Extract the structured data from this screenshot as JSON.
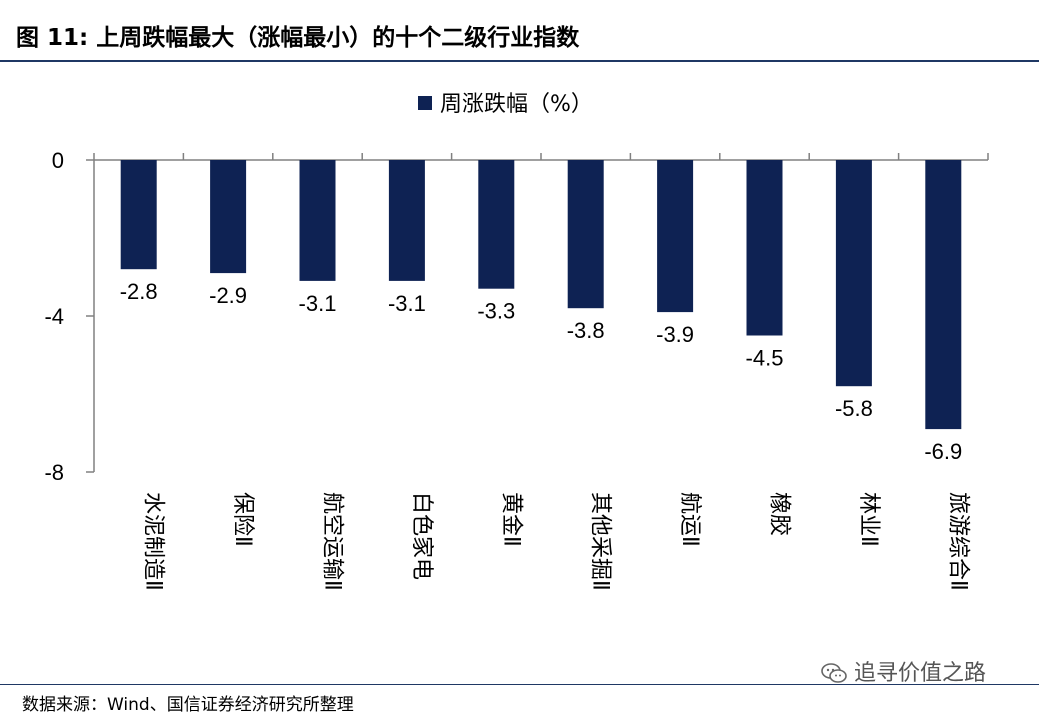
{
  "header": {
    "title": "图  11:  上周跌幅最大（涨幅最小）的十个二级行业指数"
  },
  "footer": {
    "source": "数据来源：Wind、国信证券经济研究所整理",
    "watermark": "追寻价值之路",
    "watermark_icon": "wechat-icon"
  },
  "colors": {
    "bar": "#0e2253",
    "axis": "#808080",
    "title_rule": "#1f3864"
  },
  "chart_data": {
    "type": "bar",
    "legend": {
      "label": "周涨跌幅（%）",
      "position": "top"
    },
    "categories": [
      "水泥制造Ⅱ",
      "保险Ⅱ",
      "航空运输Ⅱ",
      "白色家电",
      "黄金Ⅱ",
      "其他采掘Ⅱ",
      "航运Ⅱ",
      "橡胶",
      "林业Ⅱ",
      "旅游综合Ⅱ"
    ],
    "series": [
      {
        "name": "周涨跌幅（%）",
        "values": [
          -2.8,
          -2.9,
          -3.1,
          -3.1,
          -3.3,
          -3.8,
          -3.9,
          -4.5,
          -5.8,
          -6.9
        ]
      }
    ],
    "data_labels": [
      "-2.8",
      "-2.9",
      "-3.1",
      "-3.1",
      "-3.3",
      "-3.8",
      "-3.9",
      "-4.5",
      "-5.8",
      "-6.9"
    ],
    "ylim": [
      -8,
      0
    ],
    "yticks": [
      0,
      -4,
      -8
    ],
    "ytick_labels": [
      "0",
      "-4",
      "-8"
    ],
    "grid": false
  }
}
